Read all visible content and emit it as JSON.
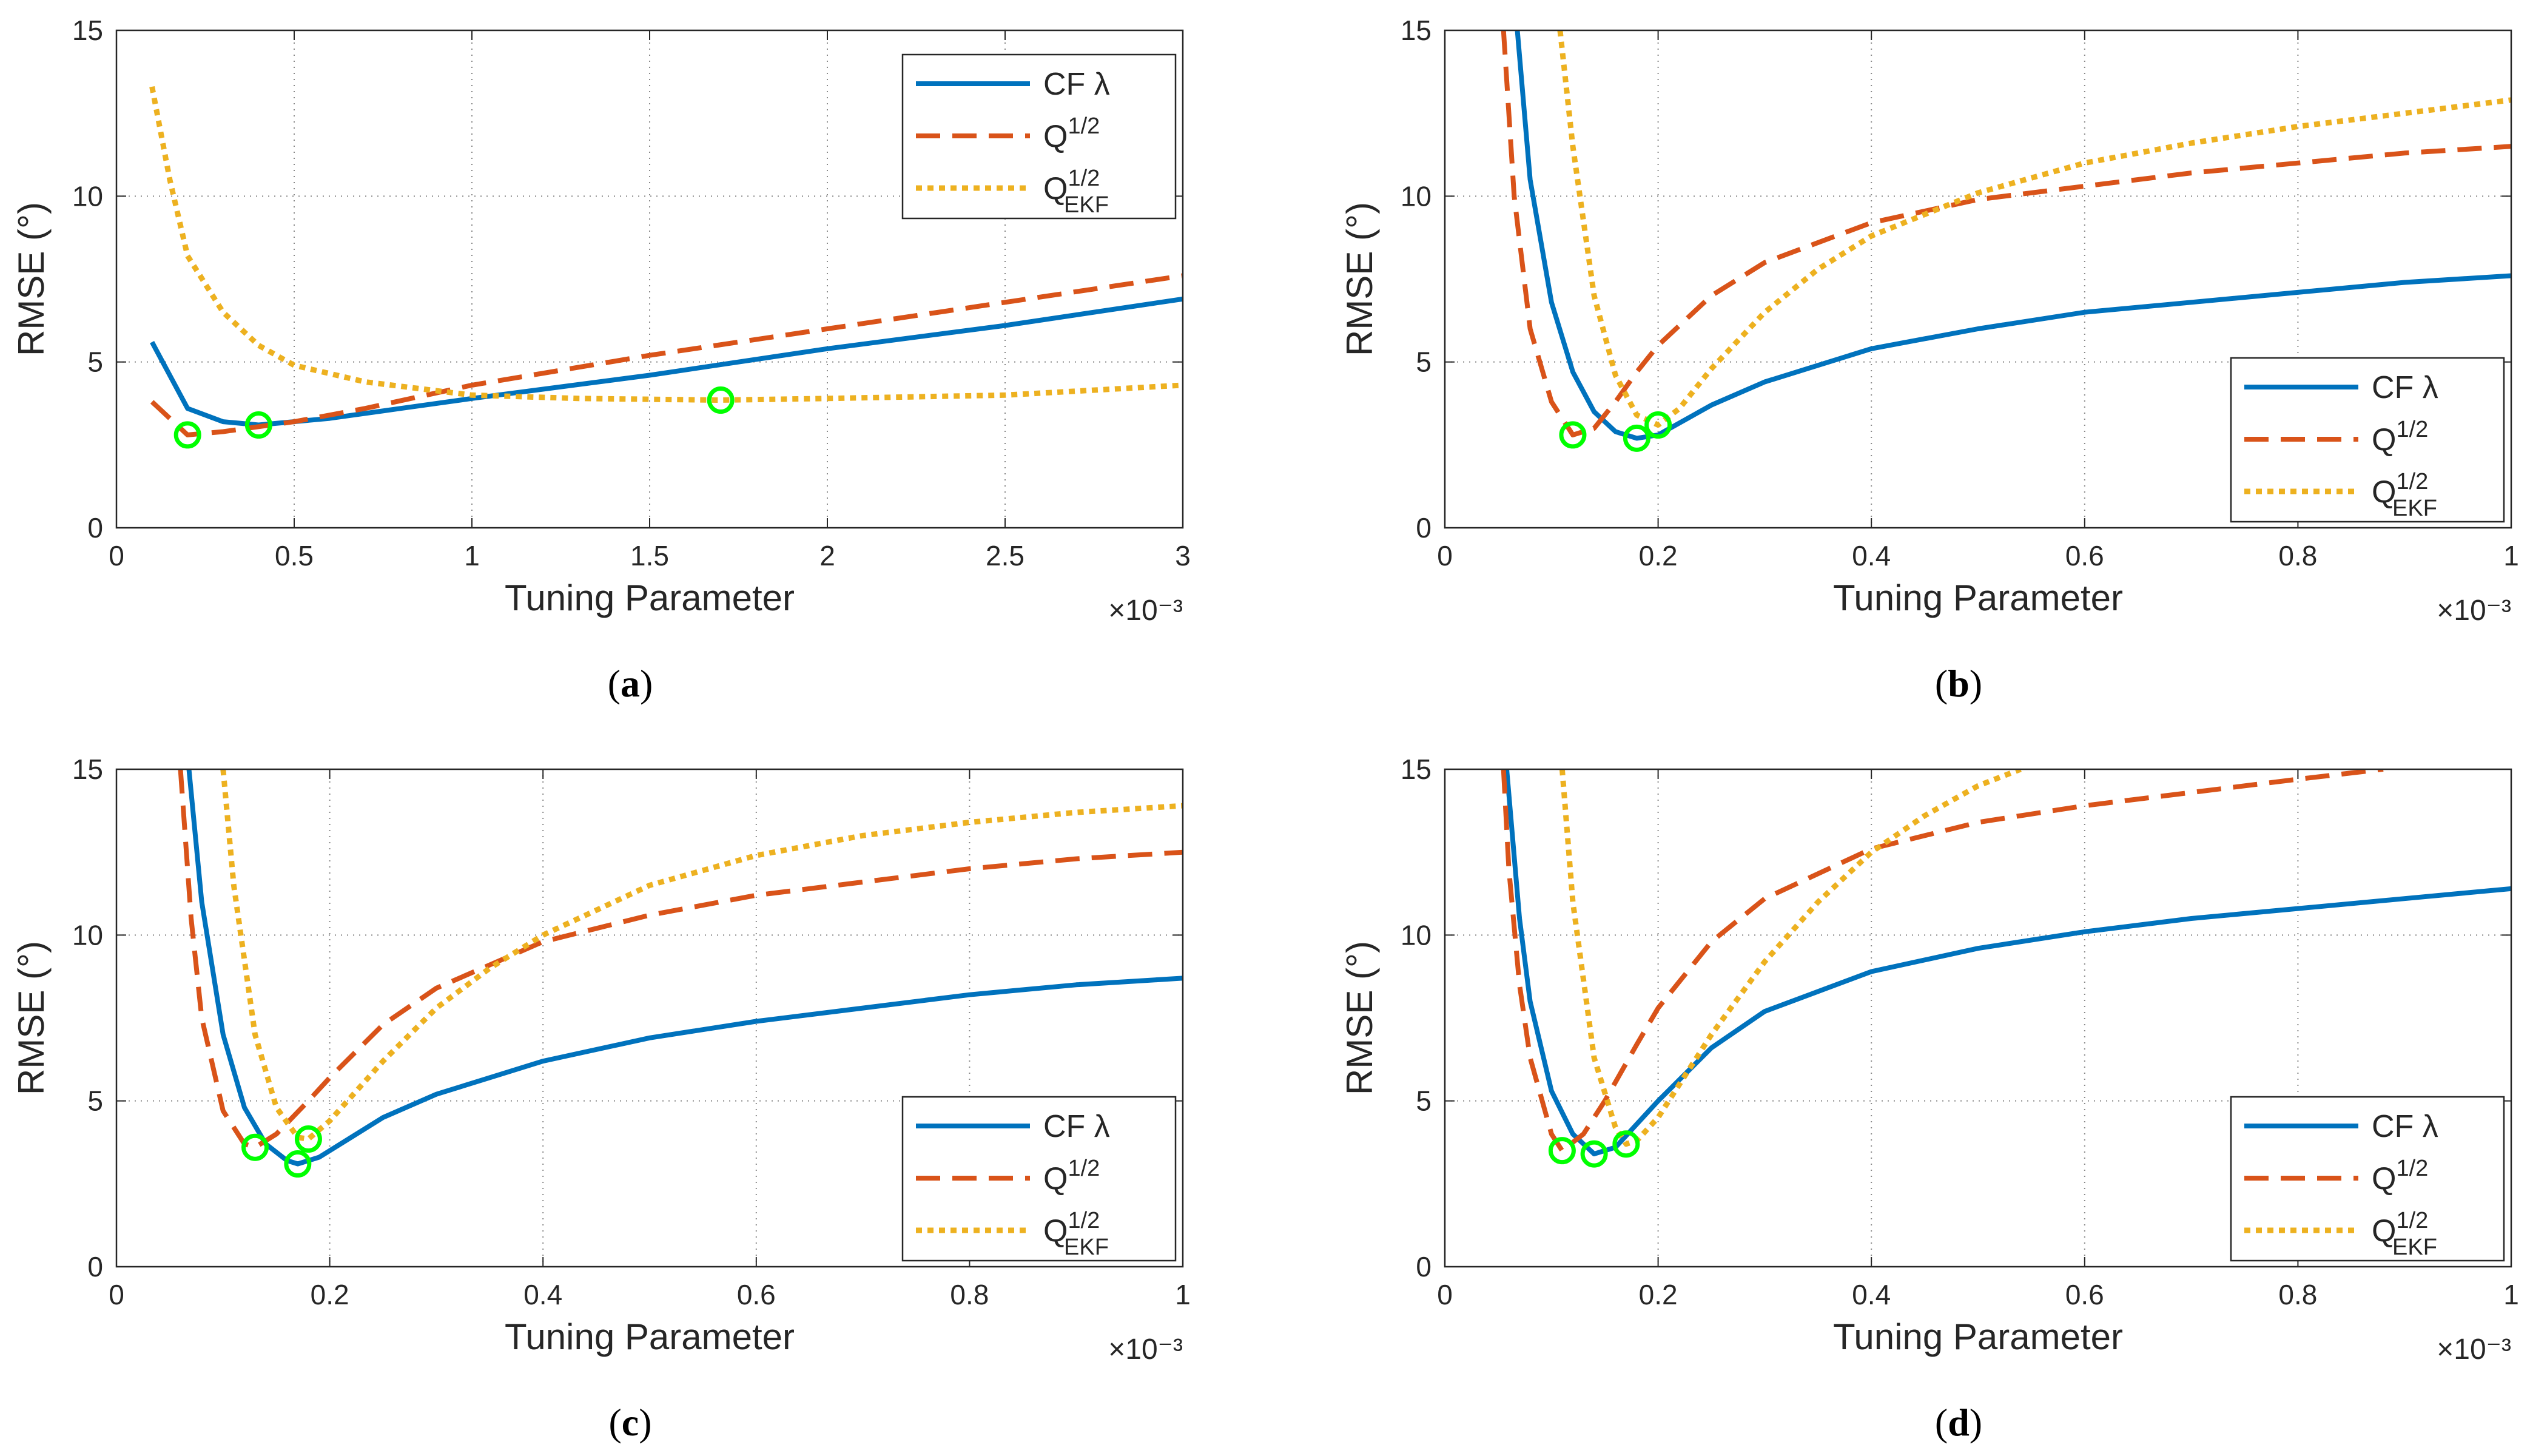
{
  "figure": {
    "panels_count": 4
  },
  "chart_data": [
    {
      "type": "line",
      "panel": "a",
      "caption": "a",
      "xlabel": "Tuning Parameter",
      "ylabel": "RMSE (°)",
      "x_exponent": "×10⁻³",
      "xlim": [
        0,
        3
      ],
      "ylim": [
        0,
        15
      ],
      "xticks": [
        "0",
        "0.5",
        "1",
        "1.5",
        "2",
        "2.5",
        "3"
      ],
      "yticks": [
        "0",
        "5",
        "10",
        "15"
      ],
      "grid": true,
      "legend_position": "top-right",
      "series": [
        {
          "name": "CF λ",
          "color": "#0072BD",
          "style": "solid",
          "x": [
            0.1,
            0.2,
            0.3,
            0.4,
            0.6,
            0.8,
            1.0,
            1.5,
            2.0,
            2.5,
            3.0
          ],
          "y": [
            5.6,
            3.6,
            3.2,
            3.1,
            3.3,
            3.6,
            3.9,
            4.6,
            5.4,
            6.1,
            6.9
          ]
        },
        {
          "name": "Q^1/2",
          "color": "#D95319",
          "style": "dashed",
          "x": [
            0.1,
            0.2,
            0.3,
            0.5,
            0.7,
            1.0,
            1.5,
            2.0,
            2.5,
            3.0
          ],
          "y": [
            3.8,
            2.8,
            2.9,
            3.2,
            3.6,
            4.3,
            5.2,
            6.0,
            6.8,
            7.6
          ]
        },
        {
          "name": "Q_EKF^1/2",
          "color": "#EDB120",
          "style": "dotted",
          "x": [
            0.1,
            0.15,
            0.2,
            0.3,
            0.4,
            0.5,
            0.7,
            1.0,
            1.3,
            1.7,
            2.0,
            2.5,
            3.0
          ],
          "y": [
            13.3,
            10.5,
            8.2,
            6.5,
            5.5,
            4.9,
            4.4,
            4.0,
            3.9,
            3.85,
            3.9,
            4.0,
            4.3
          ]
        }
      ],
      "optima": [
        {
          "series": "Q^1/2",
          "x": 0.2,
          "y": 2.8
        },
        {
          "series": "CF λ",
          "x": 0.4,
          "y": 3.1
        },
        {
          "series": "Q_EKF^1/2",
          "x": 1.7,
          "y": 3.85
        }
      ]
    },
    {
      "type": "line",
      "panel": "b",
      "caption": "b",
      "xlabel": "Tuning Parameter",
      "ylabel": "RMSE (°)",
      "x_exponent": "×10⁻³",
      "xlim": [
        0,
        1
      ],
      "ylim": [
        0,
        15
      ],
      "xticks": [
        "0",
        "0.2",
        "0.4",
        "0.6",
        "0.8",
        "1"
      ],
      "yticks": [
        "0",
        "5",
        "10",
        "15"
      ],
      "grid": true,
      "legend_position": "bottom-right",
      "series": [
        {
          "name": "CF λ",
          "color": "#0072BD",
          "style": "solid",
          "x": [
            0.068,
            0.08,
            0.1,
            0.12,
            0.14,
            0.16,
            0.18,
            0.2,
            0.25,
            0.3,
            0.4,
            0.5,
            0.6,
            0.7,
            0.8,
            0.9,
            1.0
          ],
          "y": [
            15.0,
            10.5,
            6.8,
            4.7,
            3.5,
            2.9,
            2.7,
            2.8,
            3.7,
            4.4,
            5.4,
            6.0,
            6.5,
            6.8,
            7.1,
            7.4,
            7.6
          ]
        },
        {
          "name": "Q^1/2",
          "color": "#D95319",
          "style": "dashed",
          "x": [
            0.055,
            0.065,
            0.08,
            0.1,
            0.12,
            0.14,
            0.16,
            0.18,
            0.2,
            0.25,
            0.3,
            0.4,
            0.5,
            0.6,
            0.7,
            0.8,
            0.9,
            1.0
          ],
          "y": [
            15.0,
            10.0,
            6.0,
            3.8,
            2.8,
            3.0,
            3.8,
            4.7,
            5.5,
            7.0,
            8.0,
            9.2,
            9.9,
            10.3,
            10.7,
            11.0,
            11.3,
            11.5
          ]
        },
        {
          "name": "Q_EKF^1/2",
          "color": "#EDB120",
          "style": "dotted",
          "x": [
            0.108,
            0.12,
            0.14,
            0.16,
            0.18,
            0.2,
            0.22,
            0.25,
            0.3,
            0.35,
            0.4,
            0.5,
            0.6,
            0.7,
            0.8,
            0.9,
            1.0
          ],
          "y": [
            15.0,
            11.5,
            7.0,
            4.6,
            3.4,
            3.1,
            3.6,
            4.8,
            6.5,
            7.8,
            8.8,
            10.1,
            11.0,
            11.6,
            12.1,
            12.5,
            12.9
          ]
        }
      ],
      "optima": [
        {
          "series": "Q^1/2",
          "x": 0.12,
          "y": 2.8
        },
        {
          "series": "CF λ",
          "x": 0.18,
          "y": 2.7
        },
        {
          "series": "Q_EKF^1/2",
          "x": 0.2,
          "y": 3.1
        }
      ]
    },
    {
      "type": "line",
      "panel": "c",
      "caption": "c",
      "xlabel": "Tuning Parameter",
      "ylabel": "RMSE (°)",
      "x_exponent": "×10⁻³",
      "xlim": [
        0,
        1
      ],
      "ylim": [
        0,
        15
      ],
      "xticks": [
        "0",
        "0.2",
        "0.4",
        "0.6",
        "0.8",
        "1"
      ],
      "yticks": [
        "0",
        "5",
        "10",
        "15"
      ],
      "grid": true,
      "legend_position": "bottom-right",
      "series": [
        {
          "name": "CF λ",
          "color": "#0072BD",
          "style": "solid",
          "x": [
            0.068,
            0.08,
            0.1,
            0.12,
            0.14,
            0.16,
            0.17,
            0.19,
            0.22,
            0.25,
            0.3,
            0.4,
            0.5,
            0.6,
            0.7,
            0.8,
            0.9,
            1.0
          ],
          "y": [
            15.0,
            11.0,
            7.0,
            4.8,
            3.7,
            3.2,
            3.1,
            3.3,
            3.9,
            4.5,
            5.2,
            6.2,
            6.9,
            7.4,
            7.8,
            8.2,
            8.5,
            8.7
          ]
        },
        {
          "name": "Q^1/2",
          "color": "#D95319",
          "style": "dashed",
          "x": [
            0.06,
            0.07,
            0.08,
            0.1,
            0.12,
            0.13,
            0.15,
            0.18,
            0.2,
            0.25,
            0.3,
            0.4,
            0.5,
            0.6,
            0.7,
            0.8,
            0.9,
            1.0
          ],
          "y": [
            15.0,
            10.5,
            7.5,
            4.7,
            3.7,
            3.6,
            4.0,
            5.0,
            5.7,
            7.3,
            8.4,
            9.8,
            10.6,
            11.2,
            11.6,
            12.0,
            12.3,
            12.5
          ]
        },
        {
          "name": "Q_EKF^1/2",
          "color": "#EDB120",
          "style": "dotted",
          "x": [
            0.1,
            0.11,
            0.13,
            0.15,
            0.17,
            0.18,
            0.2,
            0.25,
            0.3,
            0.35,
            0.4,
            0.5,
            0.6,
            0.7,
            0.8,
            0.9,
            1.0
          ],
          "y": [
            15.0,
            11.5,
            7.0,
            4.8,
            3.9,
            3.85,
            4.4,
            6.2,
            7.8,
            9.0,
            10.0,
            11.5,
            12.4,
            13.0,
            13.4,
            13.7,
            13.9
          ]
        }
      ],
      "optima": [
        {
          "series": "Q^1/2",
          "x": 0.13,
          "y": 3.6
        },
        {
          "series": "CF λ",
          "x": 0.17,
          "y": 3.1
        },
        {
          "series": "Q_EKF^1/2",
          "x": 0.18,
          "y": 3.85
        }
      ]
    },
    {
      "type": "line",
      "panel": "d",
      "caption": "d",
      "xlabel": "Tuning Parameter",
      "ylabel": "RMSE (°)",
      "x_exponent": "×10⁻³",
      "xlim": [
        0,
        1
      ],
      "ylim": [
        0,
        15
      ],
      "xticks": [
        "0",
        "0.2",
        "0.4",
        "0.6",
        "0.8",
        "1"
      ],
      "yticks": [
        "0",
        "5",
        "10",
        "15"
      ],
      "grid": true,
      "legend_position": "bottom-right",
      "series": [
        {
          "name": "CF λ",
          "color": "#0072BD",
          "style": "solid",
          "x": [
            0.058,
            0.07,
            0.08,
            0.1,
            0.12,
            0.14,
            0.16,
            0.18,
            0.2,
            0.25,
            0.3,
            0.4,
            0.5,
            0.6,
            0.7,
            0.8,
            0.9,
            1.0
          ],
          "y": [
            15.0,
            10.5,
            8.0,
            5.3,
            4.0,
            3.4,
            3.6,
            4.3,
            5.0,
            6.6,
            7.7,
            8.9,
            9.6,
            10.1,
            10.5,
            10.8,
            11.1,
            11.4
          ]
        },
        {
          "name": "Q^1/2",
          "color": "#D95319",
          "style": "dashed",
          "x": [
            0.055,
            0.06,
            0.07,
            0.08,
            0.1,
            0.11,
            0.13,
            0.15,
            0.18,
            0.2,
            0.25,
            0.3,
            0.4,
            0.5,
            0.6,
            0.7,
            0.8,
            0.88
          ],
          "y": [
            15.0,
            12.0,
            8.5,
            6.3,
            4.0,
            3.5,
            4.0,
            5.0,
            6.7,
            7.8,
            9.8,
            11.1,
            12.6,
            13.4,
            13.9,
            14.3,
            14.7,
            15.0
          ]
        },
        {
          "name": "Q_EKF^1/2",
          "color": "#EDB120",
          "style": "dotted",
          "x": [
            0.11,
            0.12,
            0.14,
            0.16,
            0.17,
            0.18,
            0.2,
            0.25,
            0.3,
            0.35,
            0.4,
            0.45,
            0.5,
            0.54
          ],
          "y": [
            15.0,
            11.0,
            6.3,
            4.2,
            3.7,
            3.8,
            4.5,
            7.0,
            9.2,
            11.0,
            12.5,
            13.6,
            14.5,
            15.0
          ]
        }
      ],
      "optima": [
        {
          "series": "Q^1/2",
          "x": 0.11,
          "y": 3.5
        },
        {
          "series": "CF λ",
          "x": 0.14,
          "y": 3.4
        },
        {
          "series": "Q_EKF^1/2",
          "x": 0.17,
          "y": 3.7
        }
      ]
    }
  ]
}
